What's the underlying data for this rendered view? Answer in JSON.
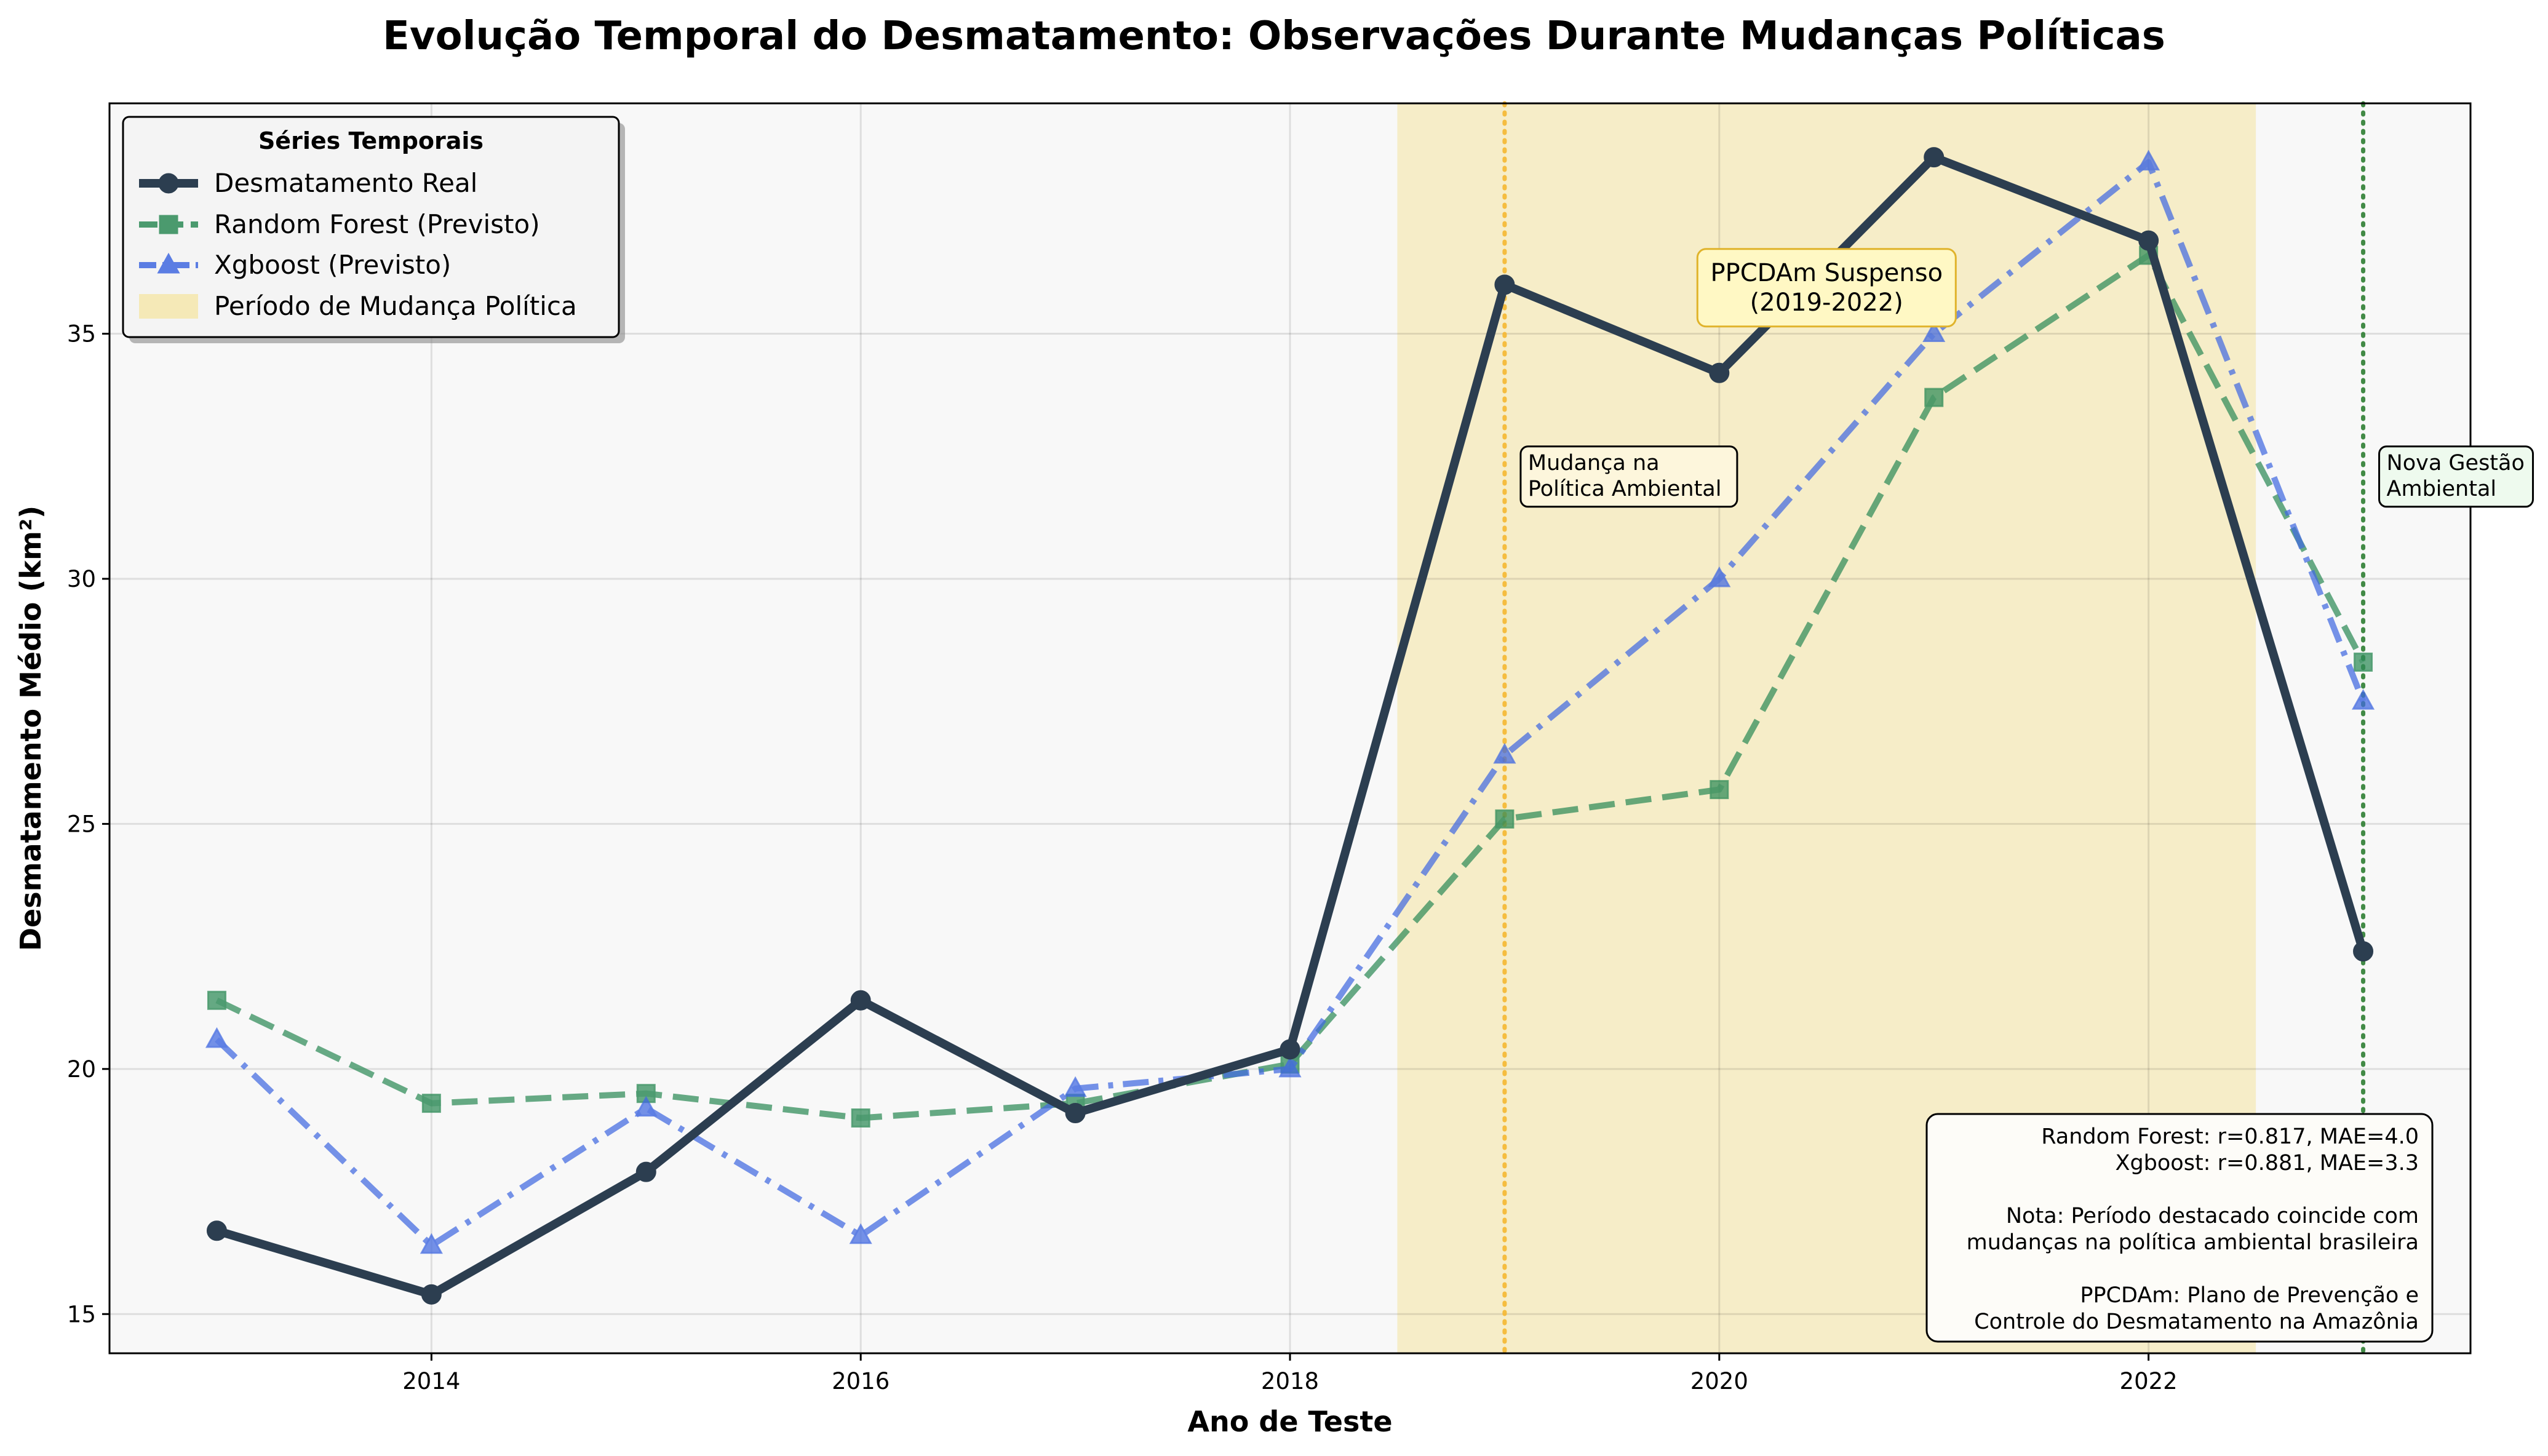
{
  "chart_data": {
    "type": "line",
    "title": "Evolução Temporal do Desmatamento: Observações Durante Mudanças Políticas",
    "xlabel": "Ano de Teste",
    "ylabel": "Desmatamento Médio (km²)",
    "xlim": [
      2012.5,
      2023.5
    ],
    "ylim": [
      14.2,
      39.7
    ],
    "x_ticks": [
      "2014",
      "2016",
      "2018",
      "2020",
      "2022"
    ],
    "y_ticks": [
      "15",
      "20",
      "25",
      "30",
      "35"
    ],
    "grid": true,
    "legend_position": "upper-left",
    "legend_title": "Séries Temporais",
    "x": [
      2013,
      2014,
      2015,
      2016,
      2017,
      2018,
      2019,
      2020,
      2021,
      2022,
      2023
    ],
    "series": [
      {
        "name": "Desmatamento Real",
        "color": "#2c3e50",
        "marker": "circle",
        "linestyle": "solid",
        "values": [
          16.7,
          15.4,
          17.9,
          21.4,
          19.1,
          20.4,
          36.0,
          34.2,
          38.6,
          36.9,
          22.4
        ]
      },
      {
        "name": "Random Forest (Previsto)",
        "color": "#2e8b57",
        "marker": "square",
        "linestyle": "dashed",
        "values": [
          21.4,
          19.3,
          19.5,
          19.0,
          19.3,
          20.1,
          25.1,
          25.7,
          33.7,
          36.6,
          28.3
        ]
      },
      {
        "name": "Xgboost (Previsto)",
        "color": "#4169e1",
        "marker": "triangle",
        "linestyle": "dashdot",
        "values": [
          20.6,
          16.4,
          19.2,
          16.6,
          19.6,
          20.0,
          26.4,
          30.0,
          35.0,
          38.5,
          27.5
        ]
      }
    ],
    "shaded_period": {
      "label": "Período de Mudança Política",
      "x_start": 2018.5,
      "x_end": 2022.5,
      "color": "#f5e6a8"
    },
    "vertical_lines": [
      {
        "x": 2019,
        "color": "#f5b731",
        "label": "Mudança na\nPolítica Ambiental",
        "label_bg": "#fdf6dc"
      },
      {
        "x": 2023,
        "color": "#2e7d32",
        "label": "Nova Gestão\nAmbiental",
        "label_bg": "#eefaee"
      }
    ],
    "annotations": [
      {
        "text": "PPCDAm Suspenso\n(2019-2022)",
        "x": 2020.5,
        "y": 35.9
      }
    ],
    "info_box": [
      "Random Forest: r=0.817, MAE=4.0",
      "Xgboost: r=0.881, MAE=3.3",
      "",
      "Nota: Período destacado coincide com",
      "mudanças na política ambiental brasileira",
      "",
      "PPCDAm: Plano de Prevenção e",
      "Controle do Desmatamento na Amazônia"
    ]
  }
}
